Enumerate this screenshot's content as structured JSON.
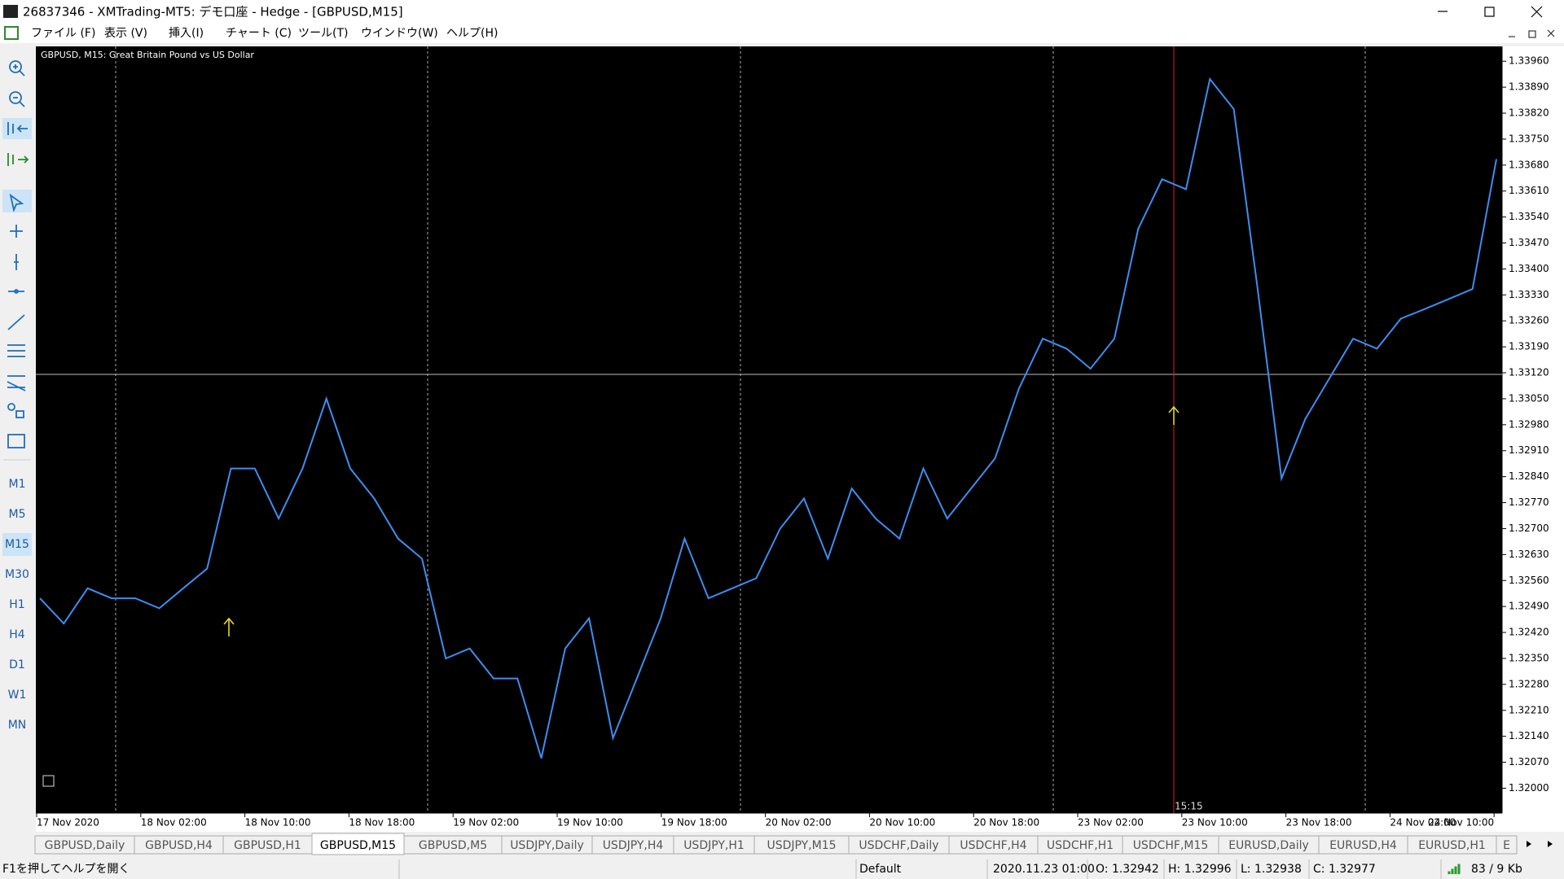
{
  "window": {
    "title": "26837346 - XMTrading-MT5: デモ口座 - Hedge - [GBPUSD,M15]",
    "menu": [
      "ファイル (F)",
      "表示 (V)",
      "挿入(I)",
      "チャート (C)",
      "ツール(T)",
      "ウインドウ(W)",
      "ヘルプ(H)"
    ]
  },
  "toolbar": {
    "timeframes": [
      "M1",
      "M5",
      "M15",
      "M30",
      "H1",
      "H4",
      "D1",
      "W1",
      "MN"
    ],
    "active": 2
  },
  "chart": {
    "type": "line",
    "title": "GBPUSD, M15:  Great Britain Pound vs US Dollar",
    "color": "#3d8ef0",
    "values": [
      1.32512,
      1.32444,
      1.32539,
      1.32512,
      1.32512,
      1.32485,
      1.32539,
      1.32592,
      1.32862,
      1.32862,
      1.32727,
      1.32862,
      1.3305,
      1.32862,
      1.32781,
      1.32673,
      1.32619,
      1.3235,
      1.32377,
      1.32296,
      1.32296,
      1.32081,
      1.32377,
      1.32458,
      1.32135,
      1.32296,
      1.32458,
      1.32673,
      1.32512,
      1.32539,
      1.32566,
      1.327,
      1.32781,
      1.32619,
      1.32808,
      1.32727,
      1.32673,
      1.32862,
      1.32727,
      1.32808,
      1.32889,
      1.33077,
      1.33212,
      1.33185,
      1.33131,
      1.33212,
      1.33508,
      1.33642,
      1.33615,
      1.33912,
      1.33831,
      1.33346,
      1.32835,
      1.32996,
      1.33104,
      1.33212,
      1.33185,
      1.33266,
      1.33292,
      1.33319,
      1.33346,
      1.33696
    ],
    "ylim": [
      1.31933,
      1.34
    ],
    "yticks": [
      {
        "value": 1.3396,
        "label": "1.33960"
      },
      {
        "value": 1.3389,
        "label": "1.33890"
      },
      {
        "value": 1.3382,
        "label": "1.33820"
      },
      {
        "value": 1.3375,
        "label": "1.33750"
      },
      {
        "value": 1.3368,
        "label": "1.33680"
      },
      {
        "value": 1.3361,
        "label": "1.33610"
      },
      {
        "value": 1.3354,
        "label": "1.33540"
      },
      {
        "value": 1.3347,
        "label": "1.33470"
      },
      {
        "value": 1.334,
        "label": "1.33400"
      },
      {
        "value": 1.3333,
        "label": "1.33330"
      },
      {
        "value": 1.3326,
        "label": "1.33260"
      },
      {
        "value": 1.3319,
        "label": "1.33190"
      },
      {
        "value": 1.3312,
        "label": "1.33120"
      },
      {
        "value": 1.3305,
        "label": "1.33050"
      },
      {
        "value": 1.3298,
        "label": "1.32980"
      },
      {
        "value": 1.3291,
        "label": "1.32910"
      },
      {
        "value": 1.3284,
        "label": "1.32840"
      },
      {
        "value": 1.3277,
        "label": "1.32770"
      },
      {
        "value": 1.327,
        "label": "1.32700"
      },
      {
        "value": 1.3263,
        "label": "1.32630"
      },
      {
        "value": 1.3256,
        "label": "1.32560"
      },
      {
        "value": 1.3249,
        "label": "1.32490"
      },
      {
        "value": 1.3242,
        "label": "1.32420"
      },
      {
        "value": 1.3235,
        "label": "1.32350"
      },
      {
        "value": 1.3228,
        "label": "1.32280"
      },
      {
        "value": 1.3221,
        "label": "1.32210"
      },
      {
        "value": 1.3214,
        "label": "1.32140"
      },
      {
        "value": 1.3207,
        "label": "1.32070"
      },
      {
        "value": 1.32,
        "label": "1.32000"
      }
    ],
    "time_labels": [
      "17 Nov 2020",
      "18 Nov 02:00",
      "18 Nov 10:00",
      "18 Nov 18:00",
      "19 Nov 02:00",
      "19 Nov 10:00",
      "19 Nov 18:00",
      "20 Nov 02:00",
      "20 Nov 10:00",
      "20 Nov 18:00",
      "23 Nov 02:00",
      "23 Nov 10:00",
      "23 Nov 18:00",
      "24 Nov 02:00",
      "24 Nov 10:00"
    ],
    "marker_label": "15:15"
  },
  "tabs": {
    "items": [
      "GBPUSD,Daily",
      "GBPUSD,H4",
      "GBPUSD,H1",
      "GBPUSD,M15",
      "GBPUSD,M5",
      "USDJPY,Daily",
      "USDJPY,H4",
      "USDJPY,H1",
      "USDJPY,M15",
      "USDCHF,Daily",
      "USDCHF,H4",
      "USDCHF,H1",
      "USDCHF,M15",
      "EURUSD,Daily",
      "EURUSD,H4",
      "EURUSD,H1",
      "E"
    ],
    "active": 3
  },
  "status": {
    "help": "F1を押してヘルプを開く",
    "profile": "Default",
    "time": "2020.11.23 01:00",
    "open": "O: 1.32942",
    "high": "H: 1.32996",
    "low": "L: 1.32938",
    "close": "C: 1.32977",
    "traffic": "83 / 9 Kb"
  }
}
